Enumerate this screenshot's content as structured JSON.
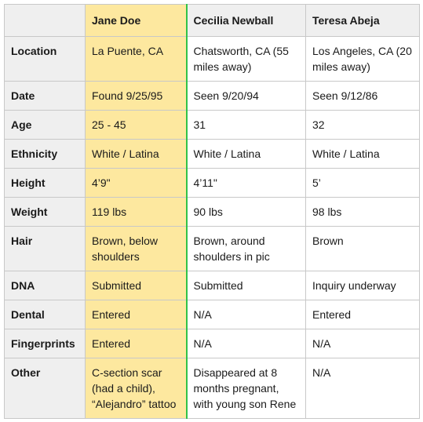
{
  "columns": {
    "subject": "Jane Doe",
    "candidate_1": "Cecilia Newball",
    "candidate_2": "Teresa Abeja"
  },
  "rows": [
    {
      "label": "Location",
      "subject": "La Puente, CA",
      "candidate_1": "Chatsworth, CA (55 miles away)",
      "candidate_2": "Los Angeles, CA (20 miles away)"
    },
    {
      "label": "Date",
      "subject": "Found 9/25/95",
      "candidate_1": "Seen 9/20/94",
      "candidate_2": "Seen 9/12/86"
    },
    {
      "label": "Age",
      "subject": "25 - 45",
      "candidate_1": "31",
      "candidate_2": "32"
    },
    {
      "label": "Ethnicity",
      "subject": "White / Latina",
      "candidate_1": "White / Latina",
      "candidate_2": "White / Latina"
    },
    {
      "label": "Height",
      "subject": "4’9\"",
      "candidate_1": "4’11\"",
      "candidate_2": "5’"
    },
    {
      "label": "Weight",
      "subject": "119 lbs",
      "candidate_1": "90 lbs",
      "candidate_2": "98 lbs"
    },
    {
      "label": "Hair",
      "subject": "Brown, below shoulders",
      "candidate_1": "Brown, around shoulders in pic",
      "candidate_2": "Brown"
    },
    {
      "label": "DNA",
      "subject": "Submitted",
      "candidate_1": "Submitted",
      "candidate_2": "Inquiry underway"
    },
    {
      "label": "Dental",
      "subject": "Entered",
      "candidate_1": "N/A",
      "candidate_2": "Entered"
    },
    {
      "label": "Fingerprints",
      "subject": "Entered",
      "candidate_1": "N/A",
      "candidate_2": "N/A"
    },
    {
      "label": "Other",
      "subject": "C-section scar (had a child), “Alejandro” tattoo",
      "candidate_1": "Disappeared at 8 months pregnant, with young son Rene",
      "candidate_2": "N/A"
    }
  ],
  "colors": {
    "subject_highlight": "#fde89f",
    "divider_green": "#31c24a",
    "label_bg": "#efefef",
    "border": "#c8c8c8"
  }
}
